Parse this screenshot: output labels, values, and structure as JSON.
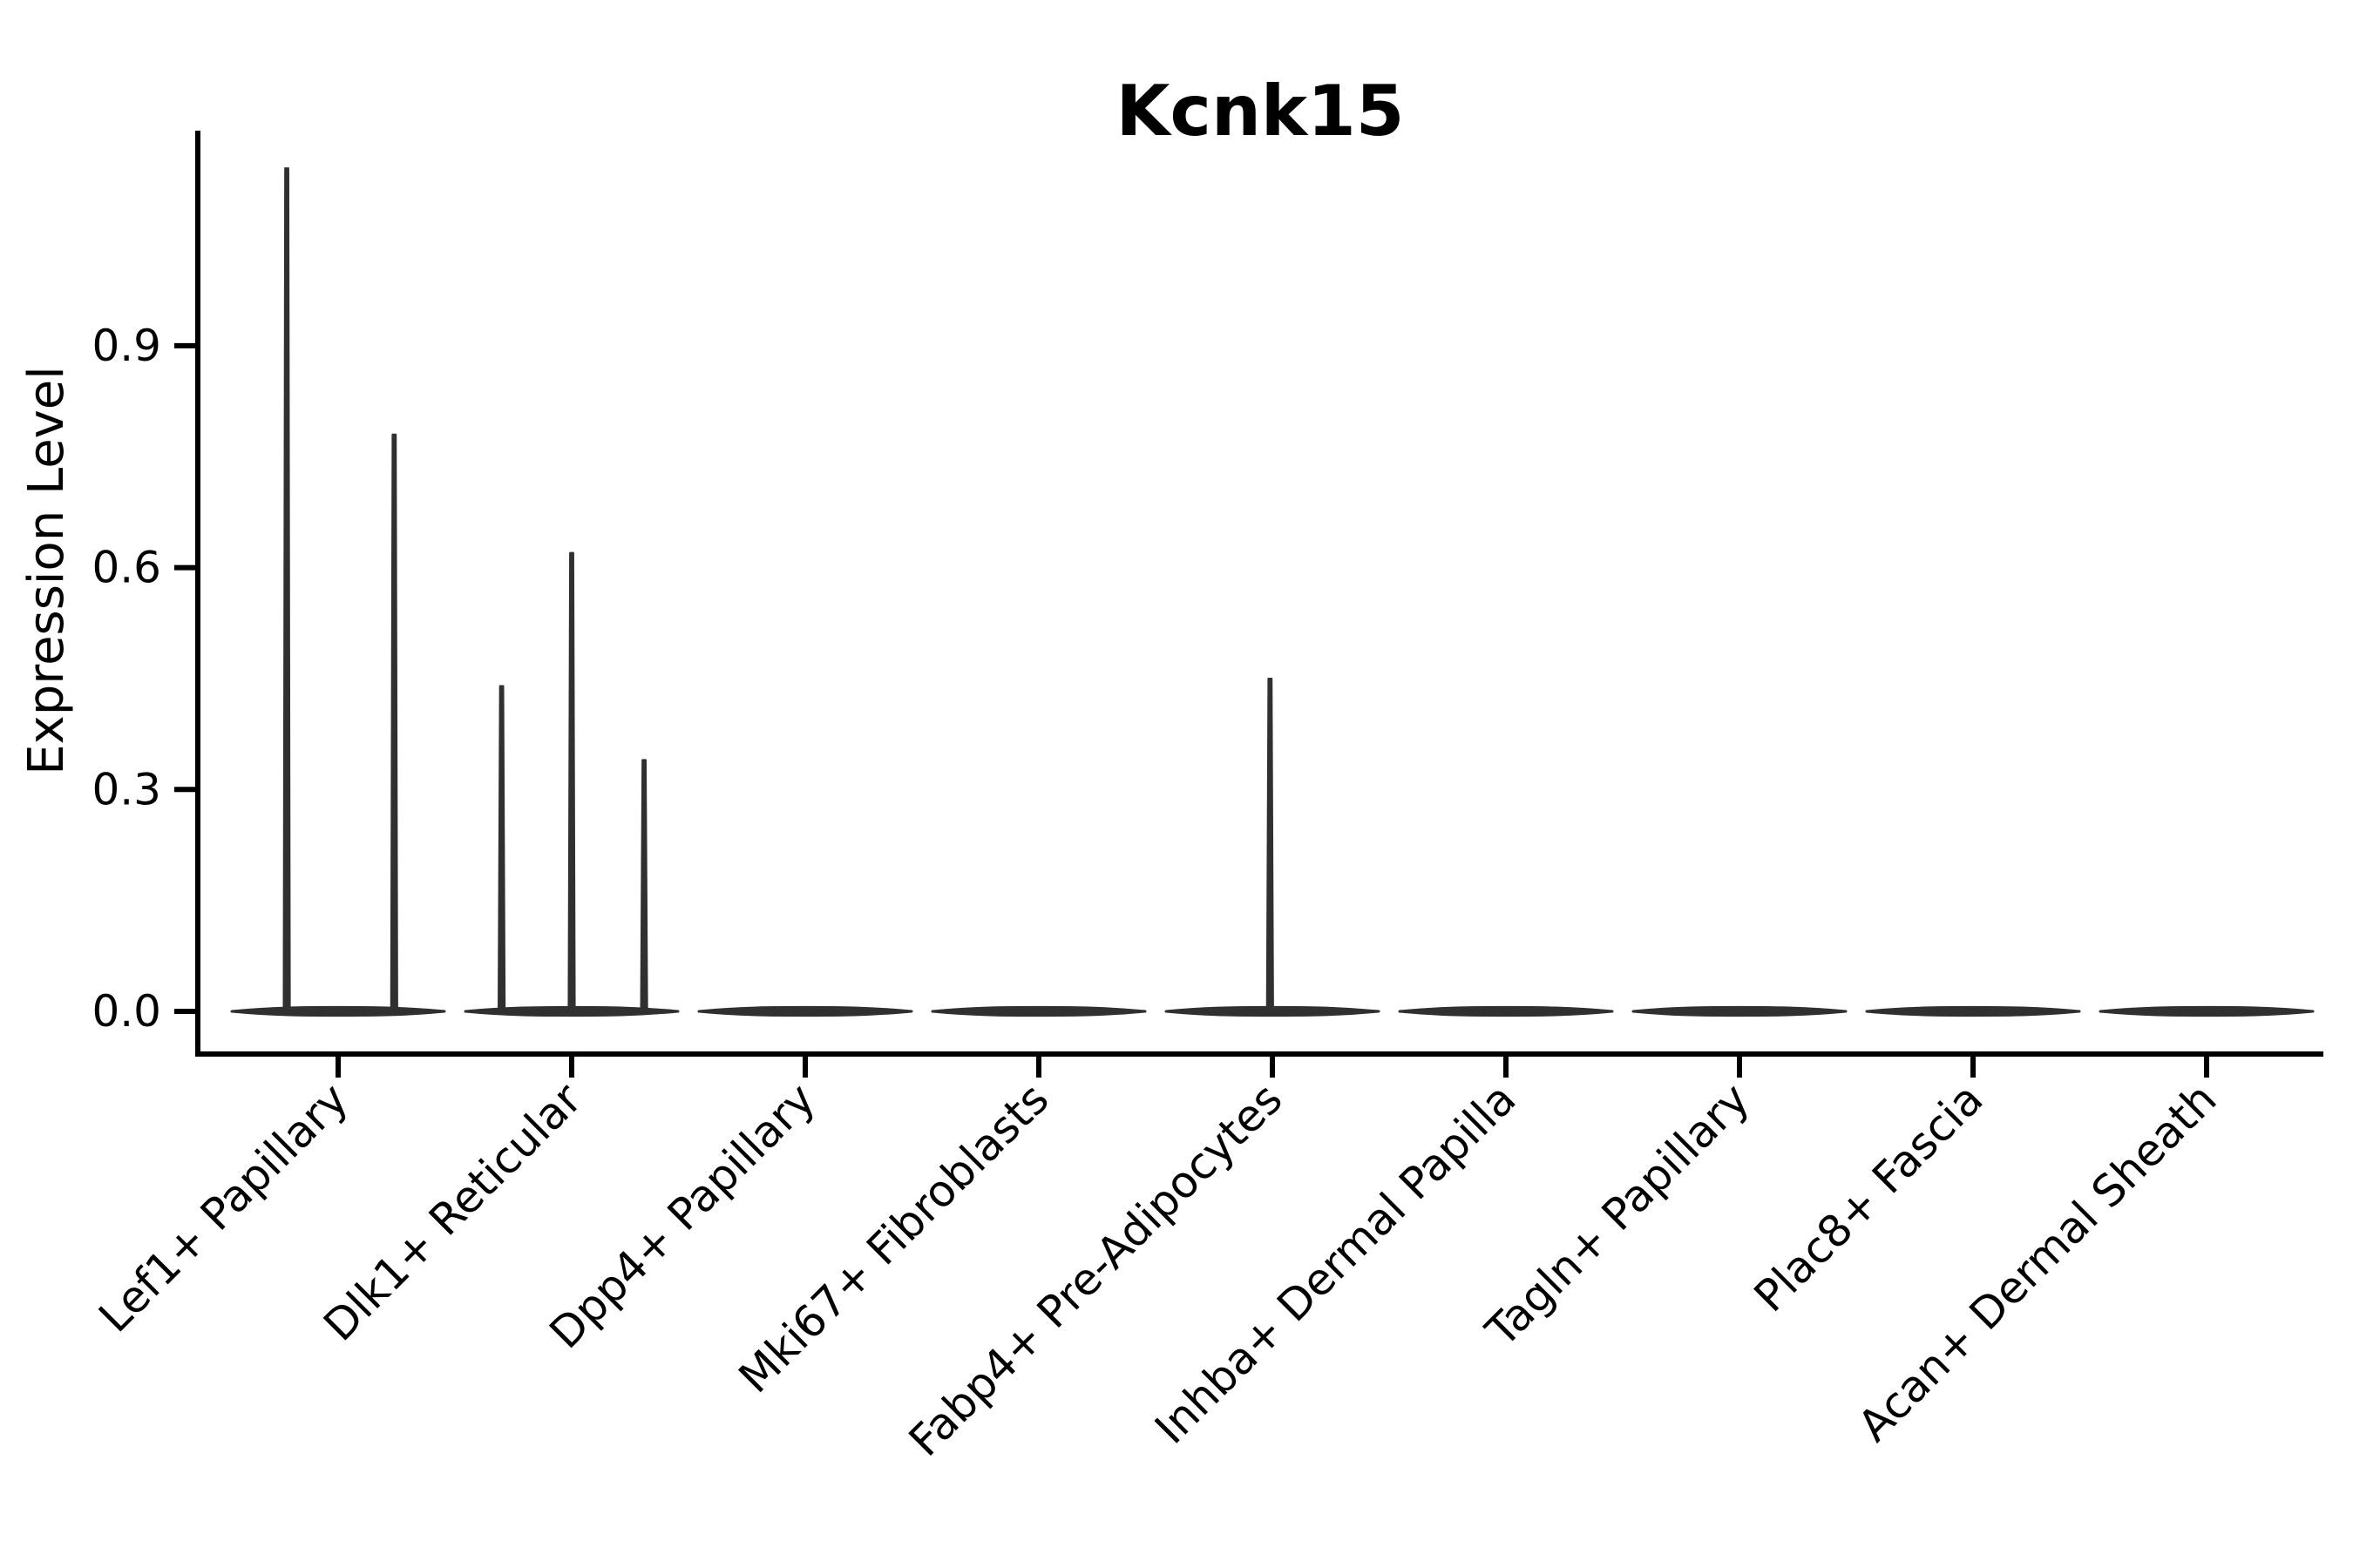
{
  "figure": {
    "title": "Kcnk15"
  },
  "chart_data": {
    "type": "violin",
    "title": "Kcnk15",
    "xlabel": "",
    "ylabel": "Expression Level",
    "ylim": [
      -0.06,
      1.2
    ],
    "yticks": [
      {
        "value": 0.0,
        "label": "0.0"
      },
      {
        "value": 0.3,
        "label": "0.3"
      },
      {
        "value": 0.6,
        "label": "0.6"
      },
      {
        "value": 0.9,
        "label": "0.9"
      }
    ],
    "grid": false,
    "legend": "none",
    "x_tick_rotation_deg": 45,
    "categories": [
      "Lef1+ Papillary",
      "Dlk1+ Reticular",
      "Dpp4+ Papillary",
      "Mki67+ Fibroblasts",
      "Fabp4+ Pre-Adipocytes",
      "Inhba+ Dermal Papilla",
      "Tagln+ Papillary",
      "Plac8+ Fascia",
      "Acan+ Dermal Sheath"
    ],
    "series": [
      {
        "category": "Lef1+ Papillary",
        "baseline_value": 0.0,
        "spikes": [
          {
            "offset_frac": -0.22,
            "max_value": 1.14
          },
          {
            "offset_frac": 0.24,
            "max_value": 0.78
          }
        ]
      },
      {
        "category": "Dlk1+ Reticular",
        "baseline_value": 0.0,
        "spikes": [
          {
            "offset_frac": -0.3,
            "max_value": 0.44
          },
          {
            "offset_frac": 0.0,
            "max_value": 0.62
          },
          {
            "offset_frac": 0.31,
            "max_value": 0.34
          }
        ]
      },
      {
        "category": "Dpp4+ Papillary",
        "baseline_value": 0.0,
        "spikes": []
      },
      {
        "category": "Mki67+ Fibroblasts",
        "baseline_value": 0.0,
        "spikes": []
      },
      {
        "category": "Fabp4+ Pre-Adipocytes",
        "baseline_value": 0.0,
        "spikes": [
          {
            "offset_frac": -0.01,
            "max_value": 0.45
          }
        ]
      },
      {
        "category": "Inhba+ Dermal Papilla",
        "baseline_value": 0.0,
        "spikes": []
      },
      {
        "category": "Tagln+ Papillary",
        "baseline_value": 0.0,
        "spikes": []
      },
      {
        "category": "Plac8+ Fascia",
        "baseline_value": 0.0,
        "spikes": []
      },
      {
        "category": "Acan+ Dermal Sheath",
        "baseline_value": 0.0,
        "spikes": []
      }
    ],
    "colors": {
      "violin_stroke": "#303030",
      "axis": "#000000",
      "text": "#000000",
      "background": "#ffffff"
    }
  }
}
